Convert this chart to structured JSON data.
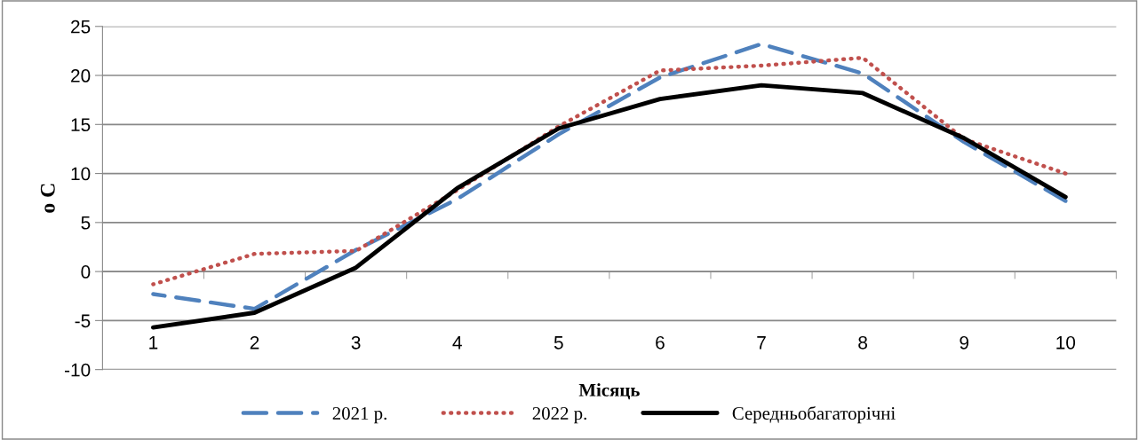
{
  "chart_data": {
    "type": "line",
    "xlabel": "Місяць",
    "ylabel": "o C",
    "categories": [
      "1",
      "2",
      "3",
      "4",
      "5",
      "6",
      "7",
      "8",
      "9",
      "10"
    ],
    "series": [
      {
        "name": "2021 р.",
        "color": "#4f81bd",
        "line_style": "dashed",
        "values": [
          -2.3,
          -3.8,
          2.2,
          7.4,
          14.0,
          19.8,
          23.2,
          20.2,
          13.2,
          7.2
        ]
      },
      {
        "name": "2022 р.",
        "color": "#c0504d",
        "line_style": "dotted",
        "values": [
          -1.3,
          1.8,
          2.1,
          8.3,
          14.8,
          20.5,
          21.0,
          21.8,
          13.5,
          10.0
        ]
      },
      {
        "name": "Середньобагаторічні",
        "color": "#000000",
        "line_style": "solid",
        "values": [
          -5.7,
          -4.2,
          0.4,
          8.5,
          14.6,
          17.6,
          19.0,
          18.2,
          13.6,
          7.6
        ]
      }
    ],
    "ylim": [
      -10,
      25
    ],
    "yticks": [
      -10,
      -5,
      0,
      5,
      10,
      15,
      20,
      25
    ],
    "grid": "y",
    "legend": "bottom",
    "marker": "none"
  }
}
